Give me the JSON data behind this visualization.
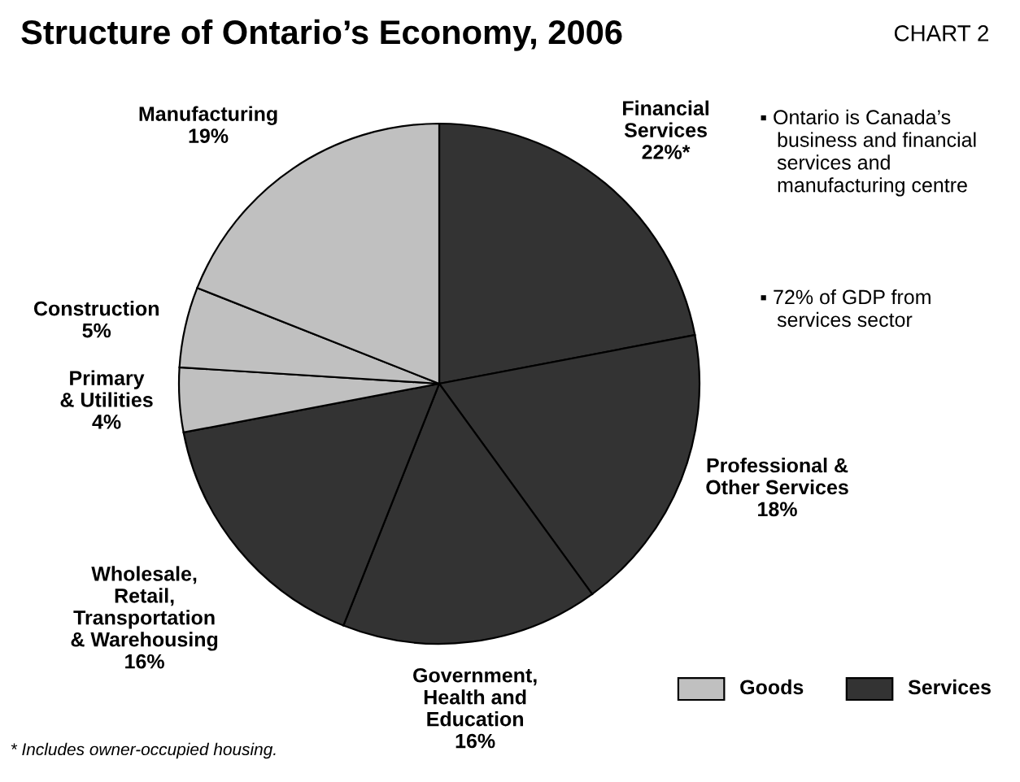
{
  "chart_data": {
    "type": "pie",
    "title": "Structure of Ontario’s Economy, 2006",
    "subtitle": "CHART 2",
    "categories": [
      "Financial\nServices",
      "Professional &\nOther Services",
      "Government,\nHealth and\nEducation",
      "Wholesale,\nRetail,\nTransportation\n& Warehousing",
      "Primary\n& Utilities",
      "Construction",
      "Manufacturing"
    ],
    "values": [
      22,
      18,
      16,
      16,
      4,
      5,
      19
    ],
    "value_labels": [
      "22%*",
      "18%",
      "16%",
      "16%",
      "4%",
      "5%",
      "19%"
    ],
    "colors": [
      "#333333",
      "#333333",
      "#333333",
      "#333333",
      "#c0c0c0",
      "#c0c0c0",
      "#c0c0c0"
    ],
    "annotations": [
      "▪ Ontario is Canada’s\n   business and financial\n   services and\n   manufacturing centre",
      "▪ 72% of GDP from\n   services sector",
      "* Includes owner-occupied housing.",
      "Goods",
      "Services"
    ]
  }
}
